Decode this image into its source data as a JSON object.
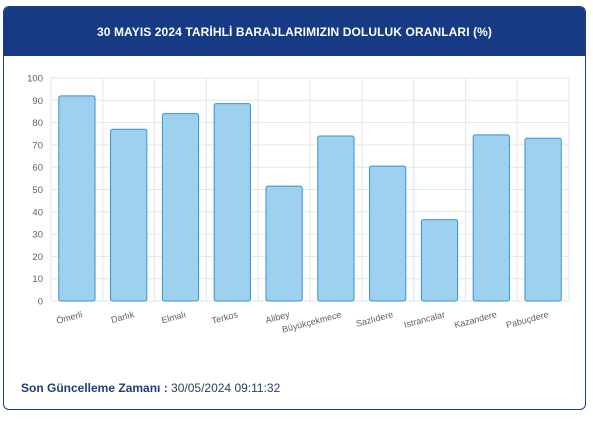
{
  "header": {
    "title": "30 MAYIS 2024 TARİHLİ BARAJLARIMIZIN DOLULUK ORANLARI (%)"
  },
  "footer": {
    "label": "Son Güncelleme Zamanı :",
    "value": "30/05/2024 09:11:32"
  },
  "colors": {
    "header_bg": "#163a83",
    "bar_fill": "#9ed0ef",
    "bar_stroke": "#3a93cf",
    "grid": "#e3e6ea"
  },
  "chart_data": {
    "type": "bar",
    "title": "",
    "xlabel": "",
    "ylabel": "",
    "ylim": [
      0,
      100
    ],
    "yticks": [
      0,
      10,
      20,
      30,
      40,
      50,
      60,
      70,
      80,
      90,
      100
    ],
    "grid": true,
    "categories": [
      "Ömerli",
      "Darlık",
      "Elmalı",
      "Terkos",
      "Alibey",
      "Büyükçekmece",
      "Sazlıdere",
      "Istrancalar",
      "Kazandere",
      "Pabuçdere"
    ],
    "values": [
      92,
      77,
      84,
      88.5,
      51.5,
      74,
      60.5,
      36.5,
      74.5,
      73
    ]
  }
}
